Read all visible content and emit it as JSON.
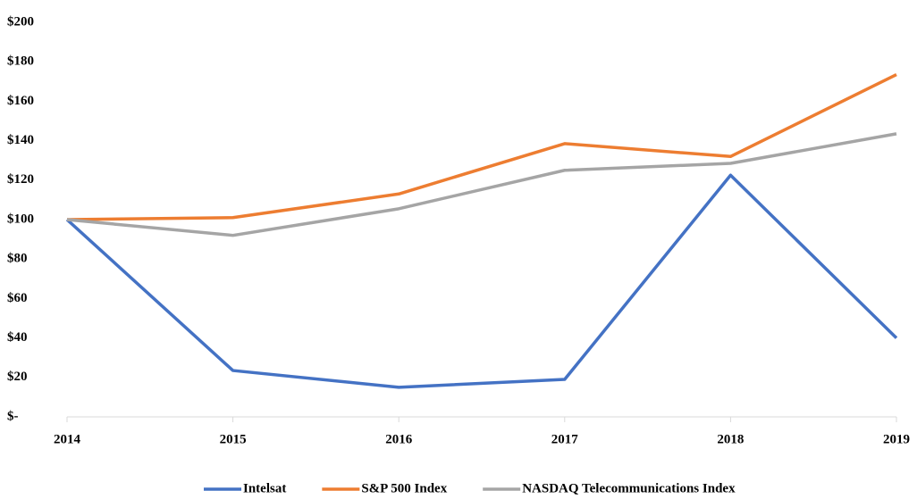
{
  "chart_data": {
    "type": "line",
    "categories": [
      "2014",
      "2015",
      "2016",
      "2017",
      "2018",
      "2019"
    ],
    "series": [
      {
        "name": "Intelsat",
        "color": "#4472c4",
        "values": [
          100,
          23.5,
          15,
          19,
          122.5,
          40
        ]
      },
      {
        "name": "S&P 500 Index",
        "color": "#ed7d31",
        "values": [
          100,
          101,
          113,
          138.5,
          132,
          173.5
        ]
      },
      {
        "name": "NASDAQ Telecommunications Index",
        "color": "#a5a5a5",
        "values": [
          100,
          92,
          105.5,
          125,
          128.5,
          143.5
        ]
      }
    ],
    "ylim": [
      0,
      200
    ],
    "yticks": [
      {
        "value": 0,
        "label": "$-"
      },
      {
        "value": 20,
        "label": "$20"
      },
      {
        "value": 40,
        "label": "$40"
      },
      {
        "value": 60,
        "label": "$60"
      },
      {
        "value": 80,
        "label": "$80"
      },
      {
        "value": 100,
        "label": "$100"
      },
      {
        "value": 120,
        "label": "$120"
      },
      {
        "value": 140,
        "label": "$140"
      },
      {
        "value": 160,
        "label": "$160"
      },
      {
        "value": 180,
        "label": "$180"
      },
      {
        "value": 200,
        "label": "$200"
      }
    ],
    "legend": "bottom"
  }
}
